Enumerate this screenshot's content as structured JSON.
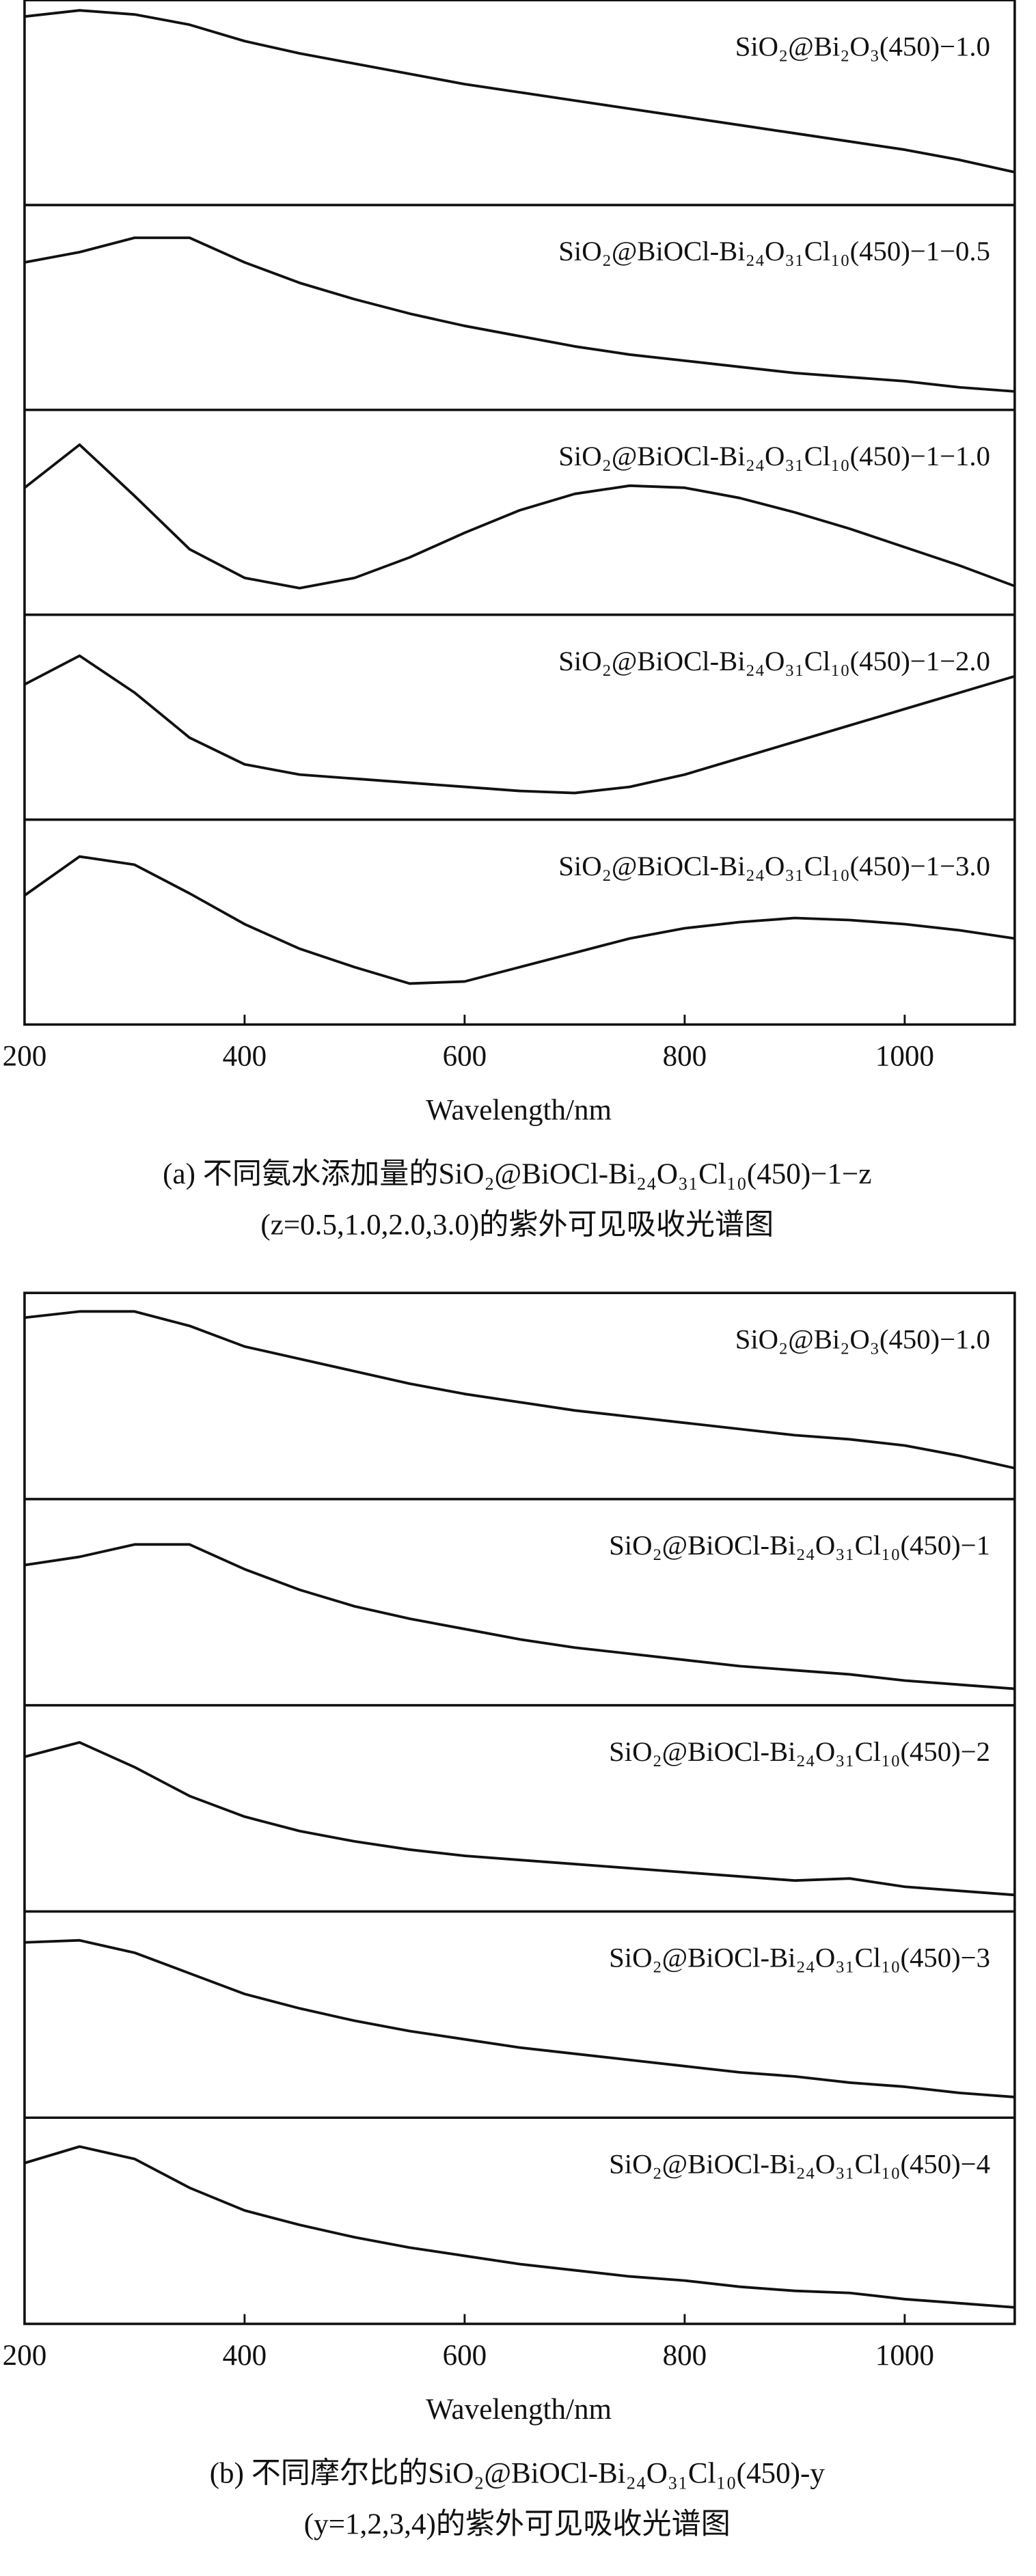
{
  "chart_data": [
    {
      "type": "line",
      "xlabel": "Wavelength/nm",
      "caption": [
        "(a) 不同氨水添加量的SiO₂@BiOCl-Bi₂₄O₃₁Cl₁₀(450)−1−z",
        "(z=0.5,1.0,2.0,3.0)的紫外可见吸收光谱图"
      ],
      "xlim": [
        200,
        1100
      ],
      "xticks": [
        200,
        400,
        600,
        800,
        1000
      ],
      "ylim": [
        0,
        1
      ],
      "x": [
        200,
        250,
        300,
        350,
        400,
        450,
        500,
        550,
        600,
        650,
        700,
        750,
        800,
        850,
        900,
        950,
        1000,
        1050,
        1100
      ],
      "series": [
        {
          "name": "SiO₂@Bi₂O₃(450)−1.0",
          "color": "#111111",
          "values": [
            0.92,
            0.95,
            0.93,
            0.88,
            0.8,
            0.74,
            0.69,
            0.64,
            0.59,
            0.55,
            0.51,
            0.47,
            0.43,
            0.39,
            0.35,
            0.31,
            0.27,
            0.22,
            0.16
          ]
        },
        {
          "name": "SiO₂@BiOCl-Bi₂₄O₃₁Cl₁₀(450)−1−0.5",
          "color": "#111111",
          "values": [
            0.72,
            0.77,
            0.84,
            0.84,
            0.72,
            0.62,
            0.54,
            0.47,
            0.41,
            0.36,
            0.31,
            0.27,
            0.24,
            0.21,
            0.18,
            0.16,
            0.14,
            0.11,
            0.09
          ]
        },
        {
          "name": "SiO₂@BiOCl-Bi₂₄O₃₁Cl₁₀(450)−1−1.0",
          "color": "#111111",
          "values": [
            0.62,
            0.83,
            0.58,
            0.32,
            0.18,
            0.13,
            0.18,
            0.28,
            0.4,
            0.51,
            0.59,
            0.63,
            0.62,
            0.57,
            0.5,
            0.42,
            0.33,
            0.24,
            0.14
          ]
        },
        {
          "name": "SiO₂@BiOCl-Bi₂₄O₃₁Cl₁₀(450)−1−2.0",
          "color": "#111111",
          "values": [
            0.66,
            0.8,
            0.62,
            0.4,
            0.27,
            0.22,
            0.2,
            0.18,
            0.16,
            0.14,
            0.13,
            0.16,
            0.22,
            0.3,
            0.38,
            0.46,
            0.54,
            0.62,
            0.7
          ]
        },
        {
          "name": "SiO₂@BiOCl-Bi₂₄O₃₁Cl₁₀(450)−1−3.0",
          "color": "#111111",
          "values": [
            0.63,
            0.82,
            0.78,
            0.64,
            0.49,
            0.37,
            0.28,
            0.2,
            0.21,
            0.28,
            0.35,
            0.42,
            0.47,
            0.5,
            0.52,
            0.51,
            0.49,
            0.46,
            0.42
          ]
        }
      ]
    },
    {
      "type": "line",
      "xlabel": "Wavelength/nm",
      "caption": [
        "(b) 不同摩尔比的SiO₂@BiOCl-Bi₂₄O₃₁Cl₁₀(450)-y",
        "(y=1,2,3,4)的紫外可见吸收光谱图"
      ],
      "xlim": [
        200,
        1100
      ],
      "xticks": [
        200,
        400,
        600,
        800,
        1000
      ],
      "ylim": [
        0,
        1
      ],
      "x": [
        200,
        250,
        300,
        350,
        400,
        450,
        500,
        550,
        600,
        650,
        700,
        750,
        800,
        850,
        900,
        950,
        1000,
        1050,
        1100
      ],
      "series": [
        {
          "name": "SiO₂@Bi₂O₃(450)−1.0",
          "color": "#111111",
          "values": [
            0.88,
            0.91,
            0.91,
            0.84,
            0.74,
            0.68,
            0.62,
            0.56,
            0.51,
            0.47,
            0.43,
            0.4,
            0.37,
            0.34,
            0.31,
            0.29,
            0.26,
            0.21,
            0.15
          ]
        },
        {
          "name": "SiO₂@BiOCl-Bi₂₄O₃₁Cl₁₀(450)−1",
          "color": "#111111",
          "values": [
            0.68,
            0.72,
            0.78,
            0.78,
            0.66,
            0.56,
            0.48,
            0.42,
            0.37,
            0.32,
            0.28,
            0.25,
            0.22,
            0.19,
            0.17,
            0.15,
            0.12,
            0.1,
            0.08
          ]
        },
        {
          "name": "SiO₂@BiOCl-Bi₂₄O₃₁Cl₁₀(450)−2",
          "color": "#111111",
          "values": [
            0.75,
            0.82,
            0.7,
            0.56,
            0.46,
            0.39,
            0.34,
            0.3,
            0.27,
            0.25,
            0.23,
            0.21,
            0.19,
            0.17,
            0.15,
            0.16,
            0.12,
            0.1,
            0.08
          ]
        },
        {
          "name": "SiO₂@BiOCl-Bi₂₄O₃₁Cl₁₀(450)−3",
          "color": "#111111",
          "values": [
            0.85,
            0.86,
            0.8,
            0.7,
            0.6,
            0.53,
            0.47,
            0.42,
            0.38,
            0.34,
            0.31,
            0.28,
            0.25,
            0.22,
            0.2,
            0.17,
            0.15,
            0.12,
            0.1
          ]
        },
        {
          "name": "SiO₂@BiOCl-Bi₂₄O₃₁Cl₁₀(450)−4",
          "color": "#111111",
          "values": [
            0.78,
            0.86,
            0.8,
            0.66,
            0.55,
            0.48,
            0.42,
            0.37,
            0.33,
            0.29,
            0.26,
            0.23,
            0.21,
            0.18,
            0.16,
            0.15,
            0.12,
            0.1,
            0.08
          ]
        }
      ]
    }
  ]
}
